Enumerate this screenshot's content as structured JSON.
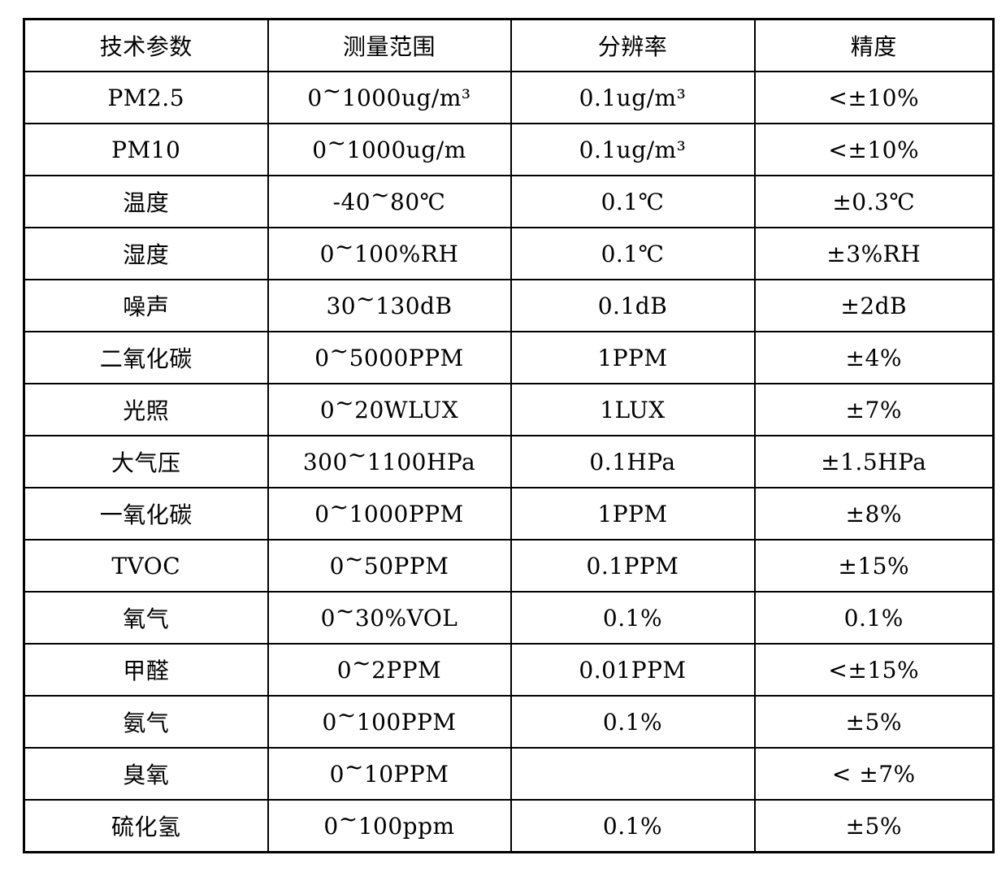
{
  "table": {
    "columns": [
      {
        "label": "技术参数"
      },
      {
        "label": "测量范围"
      },
      {
        "label": "分辨率"
      },
      {
        "label": "精度"
      }
    ],
    "rows": [
      {
        "param": "PM2.5",
        "range": "0~1000ug/m³",
        "resolution": "0.1ug/m³",
        "accuracy": "<±10%"
      },
      {
        "param": "PM10",
        "range": "0~1000ug/m",
        "resolution": "0.1ug/m³",
        "accuracy": "<±10%"
      },
      {
        "param": "温度",
        "range": "-40~80℃",
        "resolution": "0.1℃",
        "accuracy": "±0.3℃"
      },
      {
        "param": "湿度",
        "range": "0~100%RH",
        "resolution": "0.1℃",
        "accuracy": "±3%RH"
      },
      {
        "param": "噪声",
        "range": "30~130dB",
        "resolution": "0.1dB",
        "accuracy": "±2dB"
      },
      {
        "param": "二氧化碳",
        "range": "0~5000PPM",
        "resolution": "1PPM",
        "accuracy": "±4%"
      },
      {
        "param": "光照",
        "range": "0~20WLUX",
        "resolution": "1LUX",
        "accuracy": "±7%"
      },
      {
        "param": "大气压",
        "range": "300~1100HPa",
        "resolution": "0.1HPa",
        "accuracy": "±1.5HPa"
      },
      {
        "param": "一氧化碳",
        "range": "0~1000PPM",
        "resolution": "1PPM",
        "accuracy": "±8%"
      },
      {
        "param": "TVOC",
        "range": "0~50PPM",
        "resolution": "0.1PPM",
        "accuracy": "±15%"
      },
      {
        "param": "氧气",
        "range": "0~30%VOL",
        "resolution": "0.1%",
        "accuracy": "0.1%"
      },
      {
        "param": "甲醛",
        "range": "0~2PPM",
        "resolution": "0.01PPM",
        "accuracy": "<±15%"
      },
      {
        "param": "氨气",
        "range": "0~100PPM",
        "resolution": "0.1%",
        "accuracy": "±5%"
      },
      {
        "param": "臭氧",
        "range": "0~10PPM",
        "resolution": "",
        "accuracy": "< ±7%"
      },
      {
        "param": "硫化氢",
        "range": "0~100ppm",
        "resolution": "0.1%",
        "accuracy": "±5%"
      }
    ],
    "colors": {
      "text": "#000000",
      "border": "#000000",
      "background": "#ffffff"
    }
  }
}
